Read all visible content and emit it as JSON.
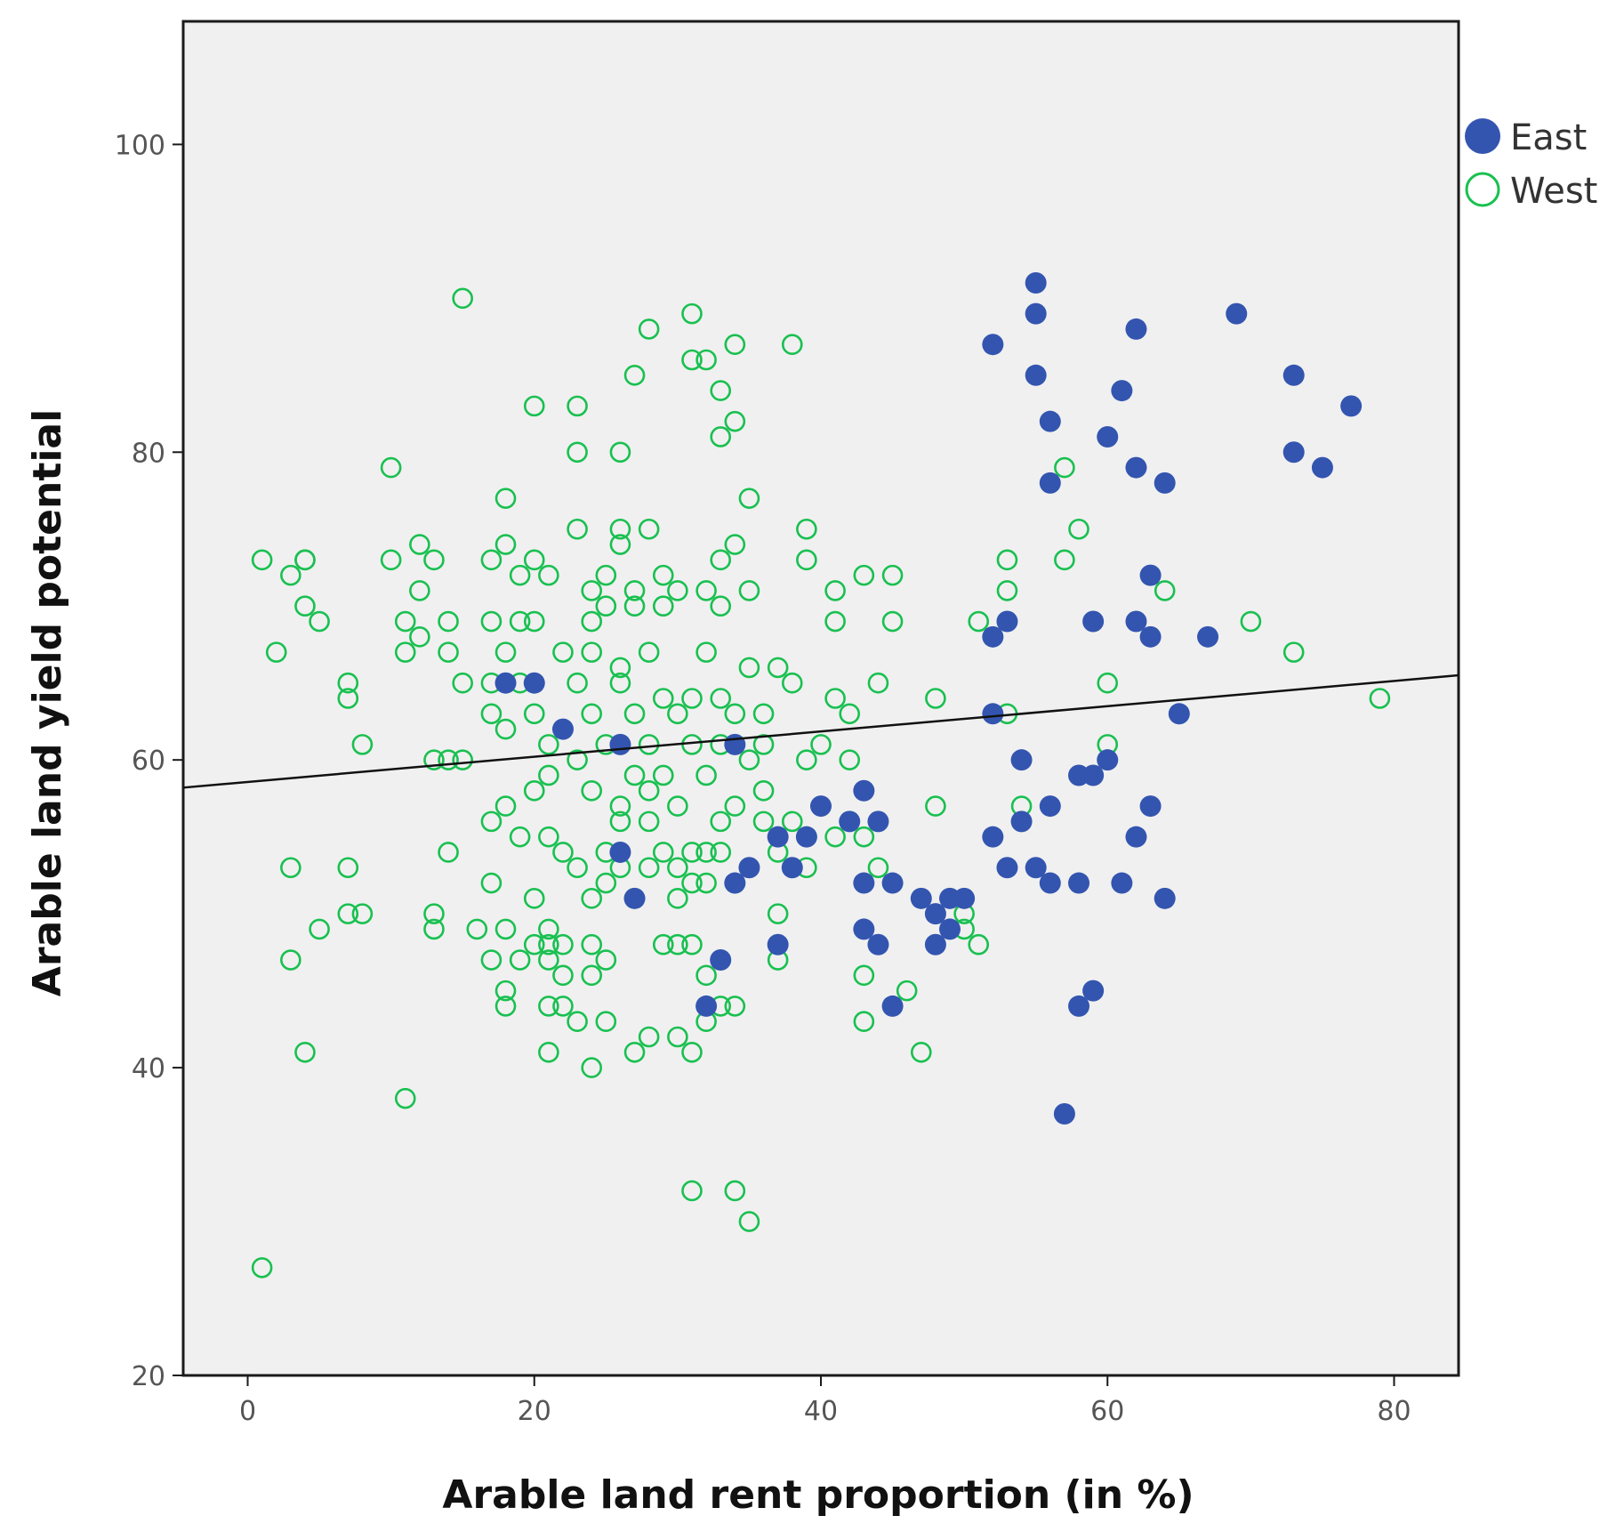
{
  "chart_data": {
    "type": "scatter",
    "title": "",
    "xlabel": "Arable land rent proportion (in %)",
    "ylabel": "Arable land yield potential",
    "xlim": [
      -4.5,
      84.5
    ],
    "ylim": [
      20,
      108
    ],
    "xticks": [
      0,
      20,
      40,
      60,
      80
    ],
    "yticks": [
      20,
      40,
      60,
      80,
      100
    ],
    "grid": false,
    "legend_position": "top-right, outside plot",
    "colors": {
      "plot_background": "#f0f0f0",
      "east": "#3355b0",
      "west": "#19c050",
      "fit_line": "#111111"
    },
    "fit_line": {
      "x": [
        -4.5,
        84.5
      ],
      "y": [
        58.2,
        65.5
      ]
    },
    "series": [
      {
        "name": "East",
        "marker": "filled-circle",
        "points": [
          [
            55,
            91
          ],
          [
            55,
            89
          ],
          [
            52,
            87
          ],
          [
            62,
            88
          ],
          [
            69,
            89
          ],
          [
            55,
            85
          ],
          [
            61,
            84
          ],
          [
            73,
            85
          ],
          [
            77,
            83
          ],
          [
            56,
            82
          ],
          [
            60,
            81
          ],
          [
            62,
            79
          ],
          [
            64,
            78
          ],
          [
            56,
            78
          ],
          [
            73,
            80
          ],
          [
            75,
            79
          ],
          [
            63,
            72
          ],
          [
            59,
            69
          ],
          [
            52,
            68
          ],
          [
            53,
            69
          ],
          [
            62,
            69
          ],
          [
            63,
            68
          ],
          [
            67,
            68
          ],
          [
            18,
            65
          ],
          [
            20,
            65
          ],
          [
            65,
            63
          ],
          [
            52,
            63
          ],
          [
            22,
            62
          ],
          [
            26,
            61
          ],
          [
            34,
            61
          ],
          [
            54,
            60
          ],
          [
            58,
            59
          ],
          [
            59,
            59
          ],
          [
            60,
            60
          ],
          [
            40,
            57
          ],
          [
            43,
            58
          ],
          [
            42,
            56
          ],
          [
            44,
            56
          ],
          [
            54,
            56
          ],
          [
            56,
            57
          ],
          [
            63,
            57
          ],
          [
            62,
            55
          ],
          [
            26,
            54
          ],
          [
            37,
            55
          ],
          [
            39,
            55
          ],
          [
            52,
            55
          ],
          [
            53,
            53
          ],
          [
            55,
            53
          ],
          [
            35,
            53
          ],
          [
            38,
            53
          ],
          [
            34,
            52
          ],
          [
            43,
            52
          ],
          [
            45,
            52
          ],
          [
            47,
            51
          ],
          [
            56,
            52
          ],
          [
            58,
            52
          ],
          [
            61,
            52
          ],
          [
            64,
            51
          ],
          [
            27,
            51
          ],
          [
            48,
            50
          ],
          [
            49,
            51
          ],
          [
            50,
            51
          ],
          [
            49,
            49
          ],
          [
            43,
            49
          ],
          [
            44,
            48
          ],
          [
            48,
            48
          ],
          [
            33,
            47
          ],
          [
            37,
            48
          ],
          [
            32,
            44
          ],
          [
            45,
            44
          ],
          [
            58,
            44
          ],
          [
            59,
            45
          ],
          [
            57,
            37
          ]
        ]
      },
      {
        "name": "West",
        "marker": "hollow-circle",
        "points": [
          [
            15,
            90
          ],
          [
            31,
            89
          ],
          [
            28,
            88
          ],
          [
            34,
            87
          ],
          [
            38,
            87
          ],
          [
            31,
            86
          ],
          [
            32,
            86
          ],
          [
            27,
            85
          ],
          [
            20,
            83
          ],
          [
            23,
            83
          ],
          [
            33,
            84
          ],
          [
            34,
            82
          ],
          [
            33,
            81
          ],
          [
            23,
            80
          ],
          [
            26,
            80
          ],
          [
            10,
            79
          ],
          [
            57,
            79
          ],
          [
            18,
            77
          ],
          [
            35,
            77
          ],
          [
            23,
            75
          ],
          [
            26,
            75
          ],
          [
            28,
            75
          ],
          [
            39,
            75
          ],
          [
            58,
            75
          ],
          [
            1,
            73
          ],
          [
            3,
            72
          ],
          [
            4,
            73
          ],
          [
            4,
            73
          ],
          [
            10,
            73
          ],
          [
            12,
            74
          ],
          [
            13,
            73
          ],
          [
            17,
            73
          ],
          [
            18,
            74
          ],
          [
            20,
            73
          ],
          [
            21,
            72
          ],
          [
            25,
            72
          ],
          [
            26,
            74
          ],
          [
            29,
            72
          ],
          [
            33,
            73
          ],
          [
            34,
            74
          ],
          [
            39,
            73
          ],
          [
            43,
            72
          ],
          [
            45,
            72
          ],
          [
            53,
            73
          ],
          [
            57,
            73
          ],
          [
            12,
            71
          ],
          [
            19,
            72
          ],
          [
            24,
            71
          ],
          [
            27,
            71
          ],
          [
            30,
            71
          ],
          [
            32,
            71
          ],
          [
            35,
            71
          ],
          [
            41,
            71
          ],
          [
            53,
            71
          ],
          [
            64,
            71
          ],
          [
            4,
            70
          ],
          [
            5,
            69
          ],
          [
            11,
            69
          ],
          [
            12,
            68
          ],
          [
            14,
            69
          ],
          [
            17,
            69
          ],
          [
            19,
            69
          ],
          [
            20,
            69
          ],
          [
            24,
            69
          ],
          [
            25,
            70
          ],
          [
            27,
            70
          ],
          [
            29,
            70
          ],
          [
            33,
            70
          ],
          [
            41,
            69
          ],
          [
            45,
            69
          ],
          [
            51,
            69
          ],
          [
            70,
            69
          ],
          [
            2,
            67
          ],
          [
            11,
            67
          ],
          [
            14,
            67
          ],
          [
            18,
            67
          ],
          [
            22,
            67
          ],
          [
            24,
            67
          ],
          [
            26,
            66
          ],
          [
            28,
            67
          ],
          [
            32,
            67
          ],
          [
            35,
            66
          ],
          [
            37,
            66
          ],
          [
            73,
            67
          ],
          [
            7,
            65
          ],
          [
            15,
            65
          ],
          [
            17,
            65
          ],
          [
            19,
            65
          ],
          [
            23,
            65
          ],
          [
            26,
            65
          ],
          [
            29,
            64
          ],
          [
            31,
            64
          ],
          [
            33,
            64
          ],
          [
            38,
            65
          ],
          [
            41,
            64
          ],
          [
            44,
            65
          ],
          [
            60,
            65
          ],
          [
            7,
            64
          ],
          [
            17,
            63
          ],
          [
            20,
            63
          ],
          [
            24,
            63
          ],
          [
            27,
            63
          ],
          [
            30,
            63
          ],
          [
            34,
            63
          ],
          [
            36,
            63
          ],
          [
            42,
            63
          ],
          [
            48,
            64
          ],
          [
            53,
            63
          ],
          [
            65,
            63
          ],
          [
            79,
            64
          ],
          [
            8,
            61
          ],
          [
            14,
            60
          ],
          [
            18,
            62
          ],
          [
            21,
            61
          ],
          [
            25,
            61
          ],
          [
            28,
            61
          ],
          [
            31,
            61
          ],
          [
            33,
            61
          ],
          [
            36,
            61
          ],
          [
            40,
            61
          ],
          [
            60,
            61
          ],
          [
            13,
            60
          ],
          [
            15,
            60
          ],
          [
            21,
            59
          ],
          [
            23,
            60
          ],
          [
            27,
            59
          ],
          [
            29,
            59
          ],
          [
            32,
            59
          ],
          [
            35,
            60
          ],
          [
            39,
            60
          ],
          [
            42,
            60
          ],
          [
            20,
            58
          ],
          [
            24,
            58
          ],
          [
            26,
            57
          ],
          [
            28,
            58
          ],
          [
            30,
            57
          ],
          [
            34,
            57
          ],
          [
            36,
            58
          ],
          [
            18,
            57
          ],
          [
            17,
            56
          ],
          [
            26,
            56
          ],
          [
            28,
            56
          ],
          [
            33,
            56
          ],
          [
            36,
            56
          ],
          [
            38,
            56
          ],
          [
            48,
            57
          ],
          [
            54,
            57
          ],
          [
            19,
            55
          ],
          [
            21,
            55
          ],
          [
            25,
            54
          ],
          [
            29,
            54
          ],
          [
            32,
            54
          ],
          [
            37,
            54
          ],
          [
            41,
            55
          ],
          [
            43,
            55
          ],
          [
            14,
            54
          ],
          [
            22,
            54
          ],
          [
            26,
            53
          ],
          [
            30,
            53
          ],
          [
            31,
            54
          ],
          [
            33,
            54
          ],
          [
            39,
            53
          ],
          [
            44,
            53
          ],
          [
            3,
            53
          ],
          [
            7,
            53
          ],
          [
            23,
            53
          ],
          [
            25,
            52
          ],
          [
            28,
            53
          ],
          [
            31,
            52
          ],
          [
            34,
            52
          ],
          [
            17,
            52
          ],
          [
            20,
            51
          ],
          [
            24,
            51
          ],
          [
            27,
            51
          ],
          [
            30,
            51
          ],
          [
            32,
            52
          ],
          [
            37,
            50
          ],
          [
            50,
            50
          ],
          [
            50,
            49
          ],
          [
            7,
            50
          ],
          [
            8,
            50
          ],
          [
            13,
            50
          ],
          [
            18,
            49
          ],
          [
            21,
            49
          ],
          [
            24,
            48
          ],
          [
            29,
            48
          ],
          [
            31,
            48
          ],
          [
            5,
            49
          ],
          [
            13,
            49
          ],
          [
            16,
            49
          ],
          [
            20,
            48
          ],
          [
            21,
            48
          ],
          [
            22,
            48
          ],
          [
            30,
            48
          ],
          [
            51,
            48
          ],
          [
            3,
            47
          ],
          [
            17,
            47
          ],
          [
            19,
            47
          ],
          [
            21,
            47
          ],
          [
            22,
            46
          ],
          [
            25,
            47
          ],
          [
            37,
            47
          ],
          [
            32,
            46
          ],
          [
            18,
            45
          ],
          [
            24,
            46
          ],
          [
            43,
            46
          ],
          [
            46,
            45
          ],
          [
            21,
            44
          ],
          [
            22,
            44
          ],
          [
            33,
            44
          ],
          [
            34,
            44
          ],
          [
            18,
            44
          ],
          [
            23,
            43
          ],
          [
            25,
            43
          ],
          [
            32,
            43
          ],
          [
            43,
            43
          ],
          [
            28,
            42
          ],
          [
            30,
            42
          ],
          [
            31,
            41
          ],
          [
            4,
            41
          ],
          [
            21,
            41
          ],
          [
            27,
            41
          ],
          [
            47,
            41
          ],
          [
            24,
            40
          ],
          [
            11,
            38
          ],
          [
            31,
            32
          ],
          [
            34,
            32
          ],
          [
            35,
            30
          ],
          [
            1,
            27
          ]
        ]
      }
    ]
  }
}
